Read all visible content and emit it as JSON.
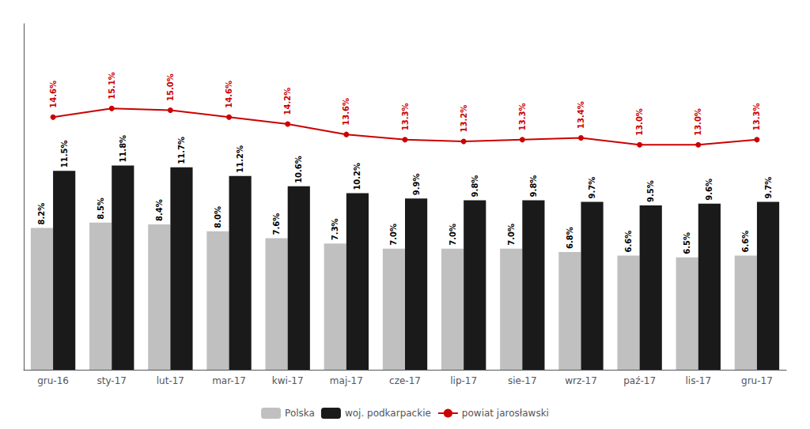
{
  "chart_data": {
    "type": "bar",
    "categories": [
      "gru-16",
      "sty-17",
      "lut-17",
      "mar-17",
      "kwi-17",
      "maj-17",
      "cze-17",
      "lip-17",
      "sie-17",
      "wrz-17",
      "paź-17",
      "lis-17",
      "gru-17"
    ],
    "series": [
      {
        "name": "Polska",
        "type": "bar",
        "color": "#c0c0c0",
        "values": [
          8.2,
          8.5,
          8.4,
          8.0,
          7.6,
          7.3,
          7.0,
          7.0,
          7.0,
          6.8,
          6.6,
          6.5,
          6.6
        ],
        "value_labels": [
          "8.2%",
          "8.5%",
          "8.4%",
          "8.0%",
          "7.6%",
          "7.3%",
          "7.0%",
          "7.0%",
          "7.0%",
          "6.8%",
          "6.6%",
          "6.5%",
          "6.6%"
        ]
      },
      {
        "name": "woj. podkarpackie",
        "type": "bar",
        "color": "#1a1a1a",
        "values": [
          11.5,
          11.8,
          11.7,
          11.2,
          10.6,
          10.2,
          9.9,
          9.8,
          9.8,
          9.7,
          9.5,
          9.6,
          9.7
        ],
        "value_labels": [
          "11.5%",
          "11.8%",
          "11.7%",
          "11.2%",
          "10.6%",
          "10.2%",
          "9.9%",
          "9.8%",
          "9.8%",
          "9.7%",
          "9.5%",
          "9.6%",
          "9.7%"
        ]
      },
      {
        "name": "powiat jarosławski",
        "type": "line",
        "color": "#cc0000",
        "marker": "circle",
        "values": [
          14.6,
          15.1,
          15.0,
          14.6,
          14.2,
          13.6,
          13.3,
          13.2,
          13.3,
          13.4,
          13.0,
          13.0,
          13.3
        ],
        "value_labels": [
          "14.6%",
          "15.1%",
          "15.0%",
          "14.6%",
          "14.2%",
          "13.6%",
          "13.3%",
          "13.2%",
          "13.3%",
          "13.4%",
          "13.0%",
          "13.0%",
          "13.3%"
        ]
      }
    ],
    "ylim": [
      0,
      20
    ],
    "grid": false,
    "legend": "bottom",
    "data_labels": true,
    "tick_labels": "x"
  }
}
